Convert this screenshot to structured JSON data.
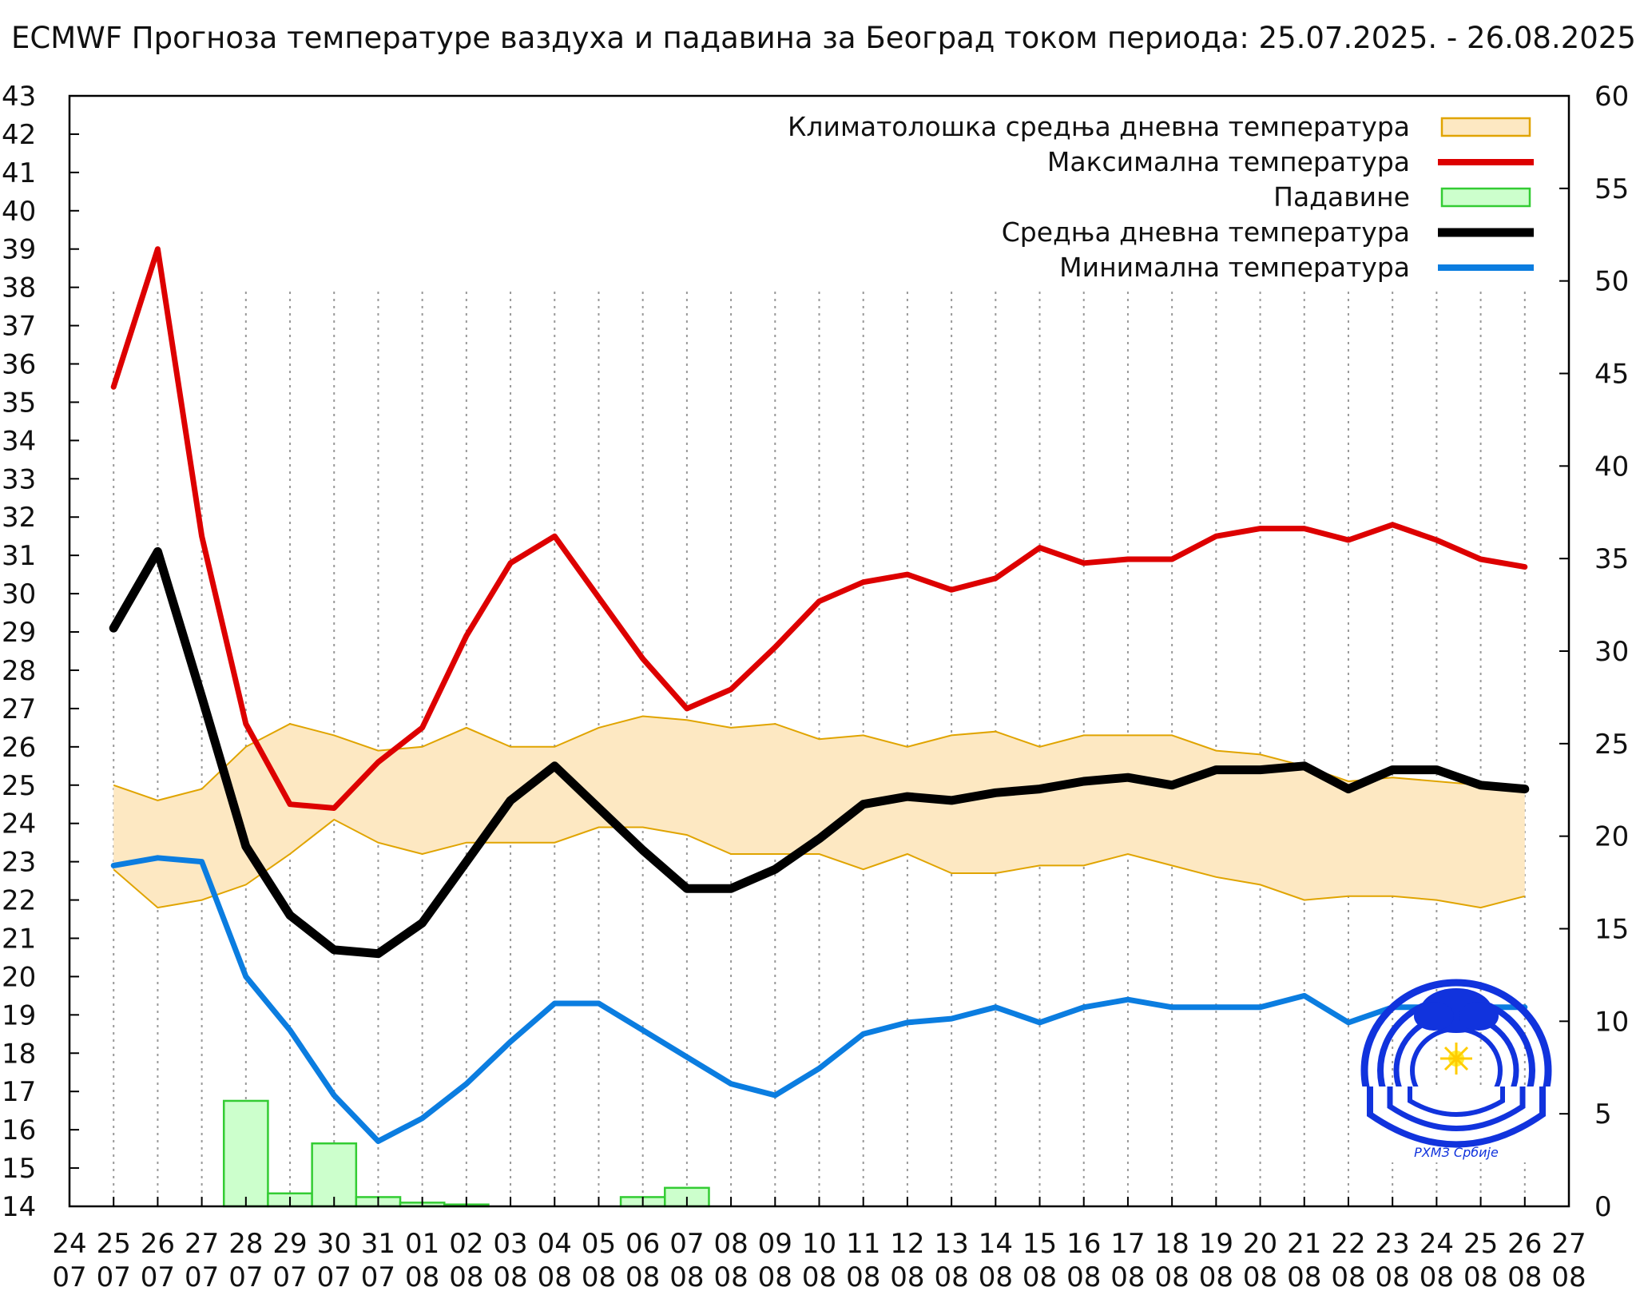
{
  "chart_data": {
    "type": "line",
    "title": "ECMWF Прогноза температуре ваздуха и падавина за Београд током периода: 25.07.2025. - 26.08.2025.",
    "x_tick_days": [
      "24",
      "25",
      "26",
      "27",
      "28",
      "29",
      "30",
      "31",
      "01",
      "02",
      "03",
      "04",
      "05",
      "06",
      "07",
      "08",
      "09",
      "10",
      "11",
      "12",
      "13",
      "14",
      "15",
      "16",
      "17",
      "18",
      "19",
      "20",
      "21",
      "22",
      "23",
      "24",
      "25",
      "26",
      "27"
    ],
    "x_tick_months": [
      "07",
      "07",
      "07",
      "07",
      "07",
      "07",
      "07",
      "07",
      "08",
      "08",
      "08",
      "08",
      "08",
      "08",
      "08",
      "08",
      "08",
      "08",
      "08",
      "08",
      "08",
      "08",
      "08",
      "08",
      "08",
      "08",
      "08",
      "08",
      "08",
      "08",
      "08",
      "08",
      "08",
      "08",
      "08"
    ],
    "x_dates": [
      "25.07",
      "26.07",
      "27.07",
      "28.07",
      "29.07",
      "30.07",
      "31.07",
      "01.08",
      "02.08",
      "03.08",
      "04.08",
      "05.08",
      "06.08",
      "07.08",
      "08.08",
      "09.08",
      "10.08",
      "11.08",
      "12.08",
      "13.08",
      "14.08",
      "15.08",
      "16.08",
      "17.08",
      "18.08",
      "19.08",
      "20.08",
      "21.08",
      "22.08",
      "23.08",
      "24.08",
      "25.08",
      "26.08"
    ],
    "y_left": {
      "min": 14,
      "max": 43,
      "ticks": [
        14,
        15,
        16,
        17,
        18,
        19,
        20,
        21,
        22,
        23,
        24,
        25,
        26,
        27,
        28,
        29,
        30,
        31,
        32,
        33,
        34,
        35,
        36,
        37,
        38,
        39,
        40,
        41,
        42,
        43
      ]
    },
    "y_right": {
      "min": 0,
      "max": 60,
      "ticks": [
        0,
        5,
        10,
        15,
        20,
        25,
        30,
        35,
        40,
        45,
        50,
        55,
        60
      ]
    },
    "grid": "vertical dotted, x ≥ 25.07",
    "legend_position": "top-right",
    "series": [
      {
        "name": "Максимална температура",
        "color": "#dd0000",
        "axis": "left",
        "values": [
          35.4,
          39.0,
          31.5,
          26.6,
          24.5,
          24.4,
          25.6,
          26.5,
          28.9,
          30.8,
          31.5,
          29.9,
          28.3,
          27.0,
          27.5,
          28.6,
          29.8,
          30.3,
          30.5,
          30.1,
          30.4,
          31.2,
          30.8,
          30.9,
          30.9,
          31.5,
          31.7,
          31.7,
          31.4,
          31.8,
          31.4,
          30.9,
          30.7
        ]
      },
      {
        "name": "Средња дневна температура",
        "color": "#000000",
        "axis": "left",
        "values": [
          29.1,
          31.1,
          27.3,
          23.4,
          21.6,
          20.7,
          20.6,
          21.4,
          23.0,
          24.6,
          25.5,
          24.4,
          23.3,
          22.3,
          22.3,
          22.8,
          23.6,
          24.5,
          24.7,
          24.6,
          24.8,
          24.9,
          25.1,
          25.2,
          25.0,
          25.4,
          25.4,
          25.5,
          24.9,
          25.4,
          25.4,
          25.0,
          24.9
        ]
      },
      {
        "name": "Минимална температура",
        "color": "#0b7de0",
        "axis": "left",
        "values": [
          22.9,
          23.1,
          23.0,
          20.0,
          18.6,
          16.9,
          15.7,
          16.3,
          17.2,
          18.3,
          19.3,
          19.3,
          18.6,
          17.9,
          17.2,
          16.9,
          17.6,
          18.5,
          18.8,
          18.9,
          19.2,
          18.8,
          19.2,
          19.4,
          19.2,
          19.2,
          19.2,
          19.5,
          18.8,
          19.2,
          19.2,
          19.2,
          19.2
        ]
      },
      {
        "name": "Климатолошка средња дневна температура",
        "color": "#fde8c2",
        "stroke": "#e0a400",
        "axis": "left",
        "upper": [
          25.0,
          24.6,
          24.9,
          26.0,
          26.6,
          26.3,
          25.9,
          26.0,
          26.5,
          26.0,
          26.0,
          26.5,
          26.8,
          26.7,
          26.5,
          26.6,
          26.2,
          26.3,
          26.0,
          26.3,
          26.4,
          26.0,
          26.3,
          26.3,
          26.3,
          25.9,
          25.8,
          25.5,
          25.1,
          25.2,
          25.1,
          25.0,
          24.9
        ],
        "lower": [
          22.8,
          21.8,
          22.0,
          22.4,
          23.2,
          24.1,
          23.5,
          23.2,
          23.5,
          23.5,
          23.5,
          23.9,
          23.9,
          23.7,
          23.2,
          23.2,
          23.2,
          22.8,
          23.2,
          22.7,
          22.7,
          22.9,
          22.9,
          23.2,
          22.9,
          22.6,
          22.4,
          22.0,
          22.1,
          22.1,
          22.0,
          21.8,
          22.1
        ]
      },
      {
        "name": "Падавине",
        "color": "#ccffcc",
        "stroke": "#33cc33",
        "axis": "right",
        "type": "bar",
        "values": [
          0,
          0,
          5.7,
          0.7,
          3.4,
          0.5,
          0.2,
          0.1,
          0,
          0,
          0,
          0.5,
          1.0,
          0,
          0,
          0,
          0,
          0,
          0,
          0,
          0,
          0,
          0,
          0,
          0,
          0,
          0,
          0,
          0,
          0,
          0,
          0,
          0
        ]
      }
    ]
  }
}
